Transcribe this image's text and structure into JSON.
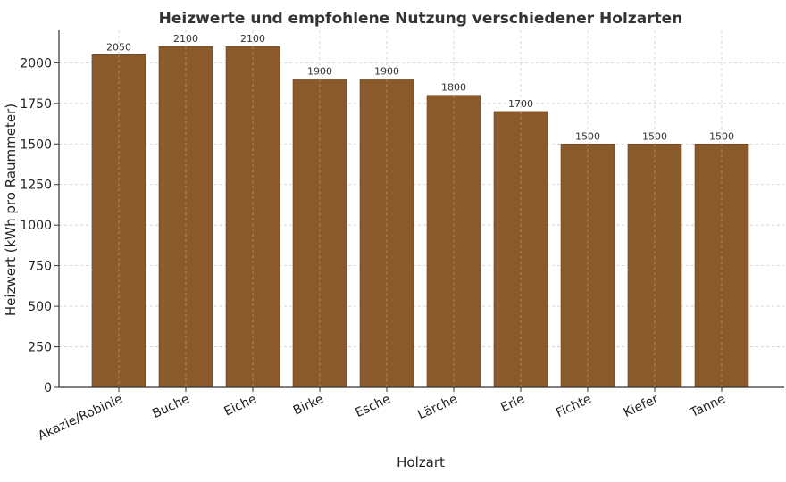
{
  "chart_data": {
    "type": "bar",
    "title": "Heizwerte und empfohlene Nutzung verschiedener Holzarten",
    "xlabel": "Holzart",
    "ylabel": "Heizwert (kWh pro Raummeter)",
    "categories": [
      "Akazie/Robinie",
      "Buche",
      "Eiche",
      "Birke",
      "Esche",
      "Lärche",
      "Erle",
      "Fichte",
      "Kiefer",
      "Tanne"
    ],
    "values": [
      2050,
      2100,
      2100,
      1900,
      1900,
      1800,
      1700,
      1500,
      1500,
      1500
    ],
    "data_labels": [
      "2050",
      "2100",
      "2100",
      "1900",
      "1900",
      "1800",
      "1700",
      "1500",
      "1500",
      "1500"
    ],
    "ylim": [
      0,
      2200
    ],
    "yticks": [
      0,
      250,
      500,
      750,
      1000,
      1250,
      1500,
      1750,
      2000
    ],
    "grid": true,
    "bar_color": "#8b5a2b",
    "bar_edge_color": "#6b4220"
  }
}
